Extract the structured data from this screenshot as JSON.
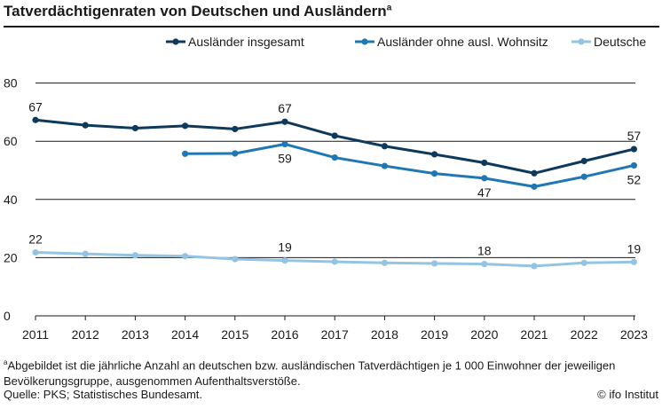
{
  "title": "Tatverdächtigenraten von Deutschen und Ausländern",
  "title_note_marker": "a",
  "footnote": {
    "marker": "a",
    "text": "Abgebildet ist die jährliche Anzahl an deutschen bzw. ausländischen Tatverdächtigen je 1 000 Einwohner der jeweiligen Bevölkerungsgruppe, ausgenommen Aufenthaltsverstöße."
  },
  "source": "Quelle: PKS; Statistisches Bundesamt.",
  "credit": "© ifo Institut",
  "chart_data": {
    "type": "line",
    "title": "Tatverdächtigenraten von Deutschen und Ausländern",
    "xlabel": "",
    "ylabel": "",
    "ylim": [
      0,
      80
    ],
    "yticks": [
      0,
      20,
      40,
      60,
      80
    ],
    "grid": true,
    "legend_position": "top-right",
    "categories": [
      "2011",
      "2012",
      "2013",
      "2014",
      "2015",
      "2016",
      "2017",
      "2018",
      "2019",
      "2020",
      "2021",
      "2022",
      "2023"
    ],
    "series": [
      {
        "name": "Ausländer insgesamt",
        "color": "#0d3a5c",
        "values": [
          67.3,
          65.5,
          64.5,
          65.3,
          64.2,
          66.7,
          61.9,
          58.3,
          55.5,
          52.6,
          49.0,
          53.2,
          57.3
        ]
      },
      {
        "name": "Ausländer ohne ausl. Wohnsitz",
        "color": "#1f78b4",
        "values": [
          null,
          null,
          null,
          55.7,
          55.8,
          59.0,
          54.4,
          51.5,
          48.9,
          47.3,
          44.4,
          47.8,
          51.7
        ]
      },
      {
        "name": "Deutsche",
        "color": "#93c4e2",
        "values": [
          21.8,
          21.3,
          20.8,
          20.5,
          19.5,
          19.0,
          18.6,
          18.2,
          18.0,
          17.8,
          17.1,
          18.2,
          18.5
        ]
      }
    ],
    "data_labels": [
      {
        "series": 0,
        "index": 0,
        "text": "67",
        "pos": "above"
      },
      {
        "series": 0,
        "index": 5,
        "text": "67",
        "pos": "above"
      },
      {
        "series": 0,
        "index": 12,
        "text": "57",
        "pos": "above"
      },
      {
        "series": 1,
        "index": 5,
        "text": "59",
        "pos": "below"
      },
      {
        "series": 1,
        "index": 9,
        "text": "47",
        "pos": "below"
      },
      {
        "series": 1,
        "index": 12,
        "text": "52",
        "pos": "below"
      },
      {
        "series": 2,
        "index": 0,
        "text": "22",
        "pos": "above"
      },
      {
        "series": 2,
        "index": 5,
        "text": "19",
        "pos": "above"
      },
      {
        "series": 2,
        "index": 9,
        "text": "18",
        "pos": "above"
      },
      {
        "series": 2,
        "index": 12,
        "text": "19",
        "pos": "above"
      }
    ]
  }
}
